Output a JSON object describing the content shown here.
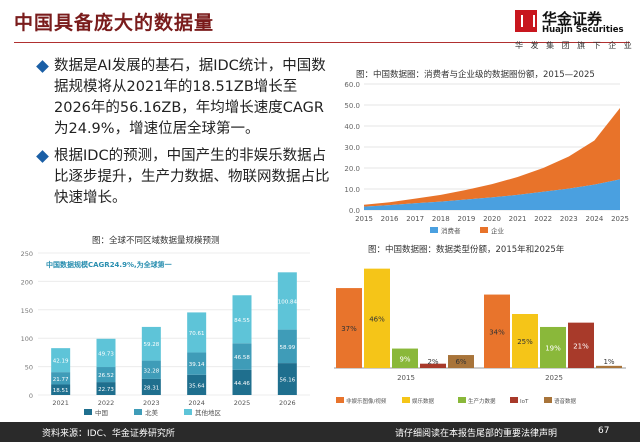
{
  "header": {
    "title": "中国具备庞大的数据量"
  },
  "logo": {
    "name_cn": "华金证券",
    "name_en": "Huajin Securities",
    "subtitle": "华 发 集 团 旗 下 企 业"
  },
  "bullets": [
    "数据是AI发展的基石，据IDC统计，中国数据规模将从2021年的18.51ZB增长至2026年的56.16ZB，年均增长速度CAGR为24.9%，增速位居全球第一。",
    "根据IDC的预测，中国产生的非娱乐数据占比逐步提升，生产力数据、物联网数据占比快速增长。"
  ],
  "charts": {
    "area": {
      "caption": "图：中国数据圈：消费者与企业级的数据圈份额，2015—2025"
    },
    "bar_global": {
      "caption": "图：全球不同区域数据量规模预测"
    },
    "share": {
      "caption": "图：中国数据圈：数据类型份额，2015年和2025年"
    }
  },
  "chart_data": [
    {
      "type": "area",
      "title": "图：中国数据圈：消费者与企业级的数据圈份额，2015—2025",
      "x": [
        2015,
        2016,
        2017,
        2018,
        2019,
        2020,
        2021,
        2022,
        2023,
        2024,
        2025
      ],
      "ylim": [
        0,
        60
      ],
      "yticks": [
        "0.0",
        "10.0",
        "20.0",
        "30.0",
        "40.0",
        "50.0",
        "60.0"
      ],
      "series": [
        {
          "name": "消费者",
          "values": [
            1.6,
            2.3,
            3.2,
            4.0,
            5.0,
            6.0,
            7.2,
            8.7,
            10.2,
            12.1,
            14.6
          ]
        },
        {
          "name": "企业",
          "values": [
            0.9,
            1.4,
            2.2,
            3.2,
            4.6,
            6.3,
            8.5,
            11.3,
            15.3,
            21.0,
            34.0
          ]
        }
      ],
      "colors": {
        "消费者": "#4aa0e0",
        "企业": "#e8732a"
      }
    },
    {
      "type": "bar",
      "title": "图：全球不同区域数据量规模预测",
      "annotation": "中国数据规模CAGR24.9%,为全球第一",
      "categories": [
        "2021",
        "2022",
        "2023",
        "2024",
        "2025",
        "2026"
      ],
      "ylim": [
        0,
        250
      ],
      "yticks": [
        "0",
        "50",
        "100",
        "150",
        "200",
        "250"
      ],
      "series": [
        {
          "name": "中国",
          "values": [
            18.51,
            22.73,
            28.31,
            35.64,
            44.46,
            56.16
          ]
        },
        {
          "name": "北美",
          "values": [
            21.77,
            26.52,
            32.28,
            39.14,
            46.58,
            58.99
          ]
        },
        {
          "name": "其他地区",
          "values": [
            42.19,
            49.73,
            59.28,
            70.61,
            84.55,
            100.84
          ]
        }
      ],
      "labels": [
        [
          "18.51",
          "22.73",
          "28.31",
          "35.64",
          "44.46",
          "56.16"
        ],
        [
          "21.77",
          "26.52",
          "32.28",
          "39.14",
          "46.58",
          "58.99"
        ],
        [
          "42.19",
          "49.73",
          "59.28",
          "70.61",
          "84.55",
          "100.84"
        ]
      ],
      "colors": {
        "中国": "#1f6f8e",
        "北美": "#3f9cb8",
        "其他地区": "#5ec4d8"
      }
    },
    {
      "type": "bar",
      "title": "图：中国数据圈：数据类型份额，2015年和2025年",
      "categories": [
        "2015",
        "2025"
      ],
      "ylim": [
        0,
        50
      ],
      "series": [
        {
          "name": "非娱乐图像/视频",
          "values": [
            37,
            34
          ],
          "labels": [
            "37%",
            "34%"
          ]
        },
        {
          "name": "娱乐数据",
          "values": [
            46,
            25
          ],
          "labels": [
            "46%",
            "25%"
          ]
        },
        {
          "name": "生产力数据",
          "values": [
            9,
            19
          ],
          "labels": [
            "9%",
            "19%"
          ]
        },
        {
          "name": "IoT",
          "values": [
            2,
            21
          ],
          "labels": [
            "2%",
            "21%"
          ]
        },
        {
          "name": "语音数据",
          "values": [
            6,
            1
          ],
          "labels": [
            "6%",
            "1%"
          ]
        }
      ],
      "colors": {
        "非娱乐图像/视频": "#e8742c",
        "娱乐数据": "#f5c518",
        "生产力数据": "#8ab83a",
        "IoT": "#a83a2a",
        "语音数据": "#a8743a"
      }
    }
  ],
  "footer": {
    "source": "资料来源：IDC、华金证券研究所",
    "disclaimer": "请仔细阅读在本报告尾部的重要法律声明",
    "page": "67"
  }
}
